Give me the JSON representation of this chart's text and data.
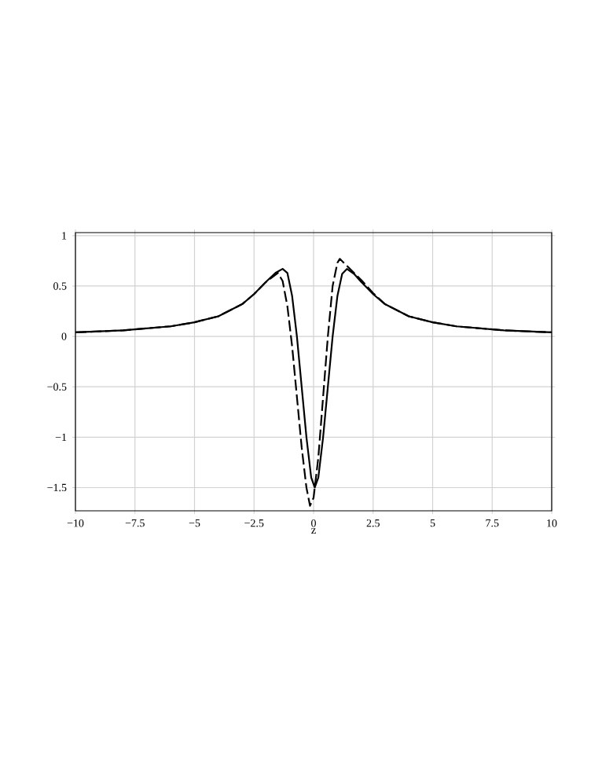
{
  "chart_data": {
    "type": "line",
    "xlabel": "z",
    "xlim": [
      -10,
      10
    ],
    "ylim": [
      -1.73,
      1.03
    ],
    "xticks": [
      {
        "value": -10,
        "label": "−10"
      },
      {
        "value": -7.5,
        "label": "−7.5"
      },
      {
        "value": -5,
        "label": "−5"
      },
      {
        "value": -2.5,
        "label": "−2.5"
      },
      0,
      2.5,
      5,
      7.5,
      10
    ],
    "yticks": [
      {
        "value": -1.5,
        "label": "−1.5"
      },
      {
        "value": -1,
        "label": "−1"
      },
      {
        "value": -0.5,
        "label": "−0.5"
      },
      0,
      0.5,
      1
    ],
    "grid": true,
    "marker": "none",
    "series": [
      {
        "color": "#000000",
        "line_style": "solid",
        "x": [
          -10,
          -8,
          -6,
          -5,
          -4,
          -3,
          -2.5,
          -2,
          -1.6,
          -1.3,
          -1.1,
          -0.9,
          -0.7,
          -0.5,
          -0.3,
          -0.1,
          0.05,
          0.2,
          0.4,
          0.6,
          0.8,
          1.0,
          1.2,
          1.4,
          1.7,
          2,
          2.5,
          3,
          4,
          5,
          6,
          8,
          10
        ],
        "values": [
          0.04,
          0.06,
          0.1,
          0.14,
          0.2,
          0.32,
          0.42,
          0.54,
          0.63,
          0.67,
          0.63,
          0.4,
          0.0,
          -0.5,
          -1.0,
          -1.4,
          -1.5,
          -1.4,
          -1.0,
          -0.5,
          0.0,
          0.4,
          0.62,
          0.67,
          0.62,
          0.54,
          0.42,
          0.32,
          0.2,
          0.14,
          0.1,
          0.06,
          0.04
        ]
      },
      {
        "color": "#000000",
        "line_style": "dashed",
        "x": [
          -10,
          -8,
          -6,
          -5,
          -4,
          -3,
          -2.5,
          -2,
          -1.5,
          -1.3,
          -1.1,
          -0.9,
          -0.7,
          -0.5,
          -0.3,
          -0.15,
          0,
          0.2,
          0.4,
          0.6,
          0.8,
          1.0,
          1.1,
          1.4,
          2,
          2.5,
          3,
          4,
          5,
          6,
          8,
          10
        ],
        "values": [
          0.04,
          0.06,
          0.1,
          0.14,
          0.2,
          0.32,
          0.42,
          0.54,
          0.63,
          0.55,
          0.3,
          -0.1,
          -0.6,
          -1.1,
          -1.5,
          -1.68,
          -1.6,
          -1.2,
          -0.6,
          0.0,
          0.5,
          0.73,
          0.77,
          0.7,
          0.56,
          0.43,
          0.32,
          0.2,
          0.14,
          0.1,
          0.06,
          0.04
        ]
      }
    ]
  }
}
